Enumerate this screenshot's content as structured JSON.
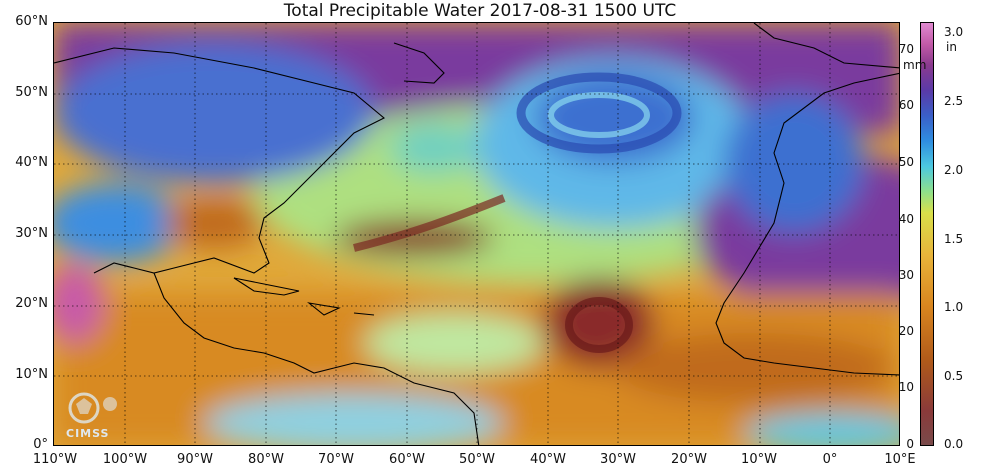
{
  "title": "Total Precipitable Water  2017-08-31 1500 UTC",
  "latitude_labels": [
    "60°N",
    "50°N",
    "40°N",
    "30°N",
    "20°N",
    "10°N",
    "0°"
  ],
  "longitude_labels": [
    "110°W",
    "100°W",
    "90°W",
    "80°W",
    "70°W",
    "60°W",
    "50°W",
    "40°W",
    "30°W",
    "20°W",
    "10°W",
    "0°",
    "10°E"
  ],
  "colorbar": {
    "mm_unit": "mm",
    "in_unit": "in",
    "mm_ticks": [
      "70",
      "60",
      "50",
      "40",
      "30",
      "20",
      "10",
      "0"
    ],
    "in_ticks": [
      "3.0",
      "2.5",
      "2.0",
      "1.5",
      "1.0",
      "0.5",
      "0.0"
    ]
  },
  "logo_text": "CIMSS",
  "colors": {
    "very_moist": "#8a2a2a",
    "moist": "#d9861f",
    "moderate": "#9be07a",
    "dry": "#2f8ee0",
    "very_dry": "#6a2a8e"
  }
}
